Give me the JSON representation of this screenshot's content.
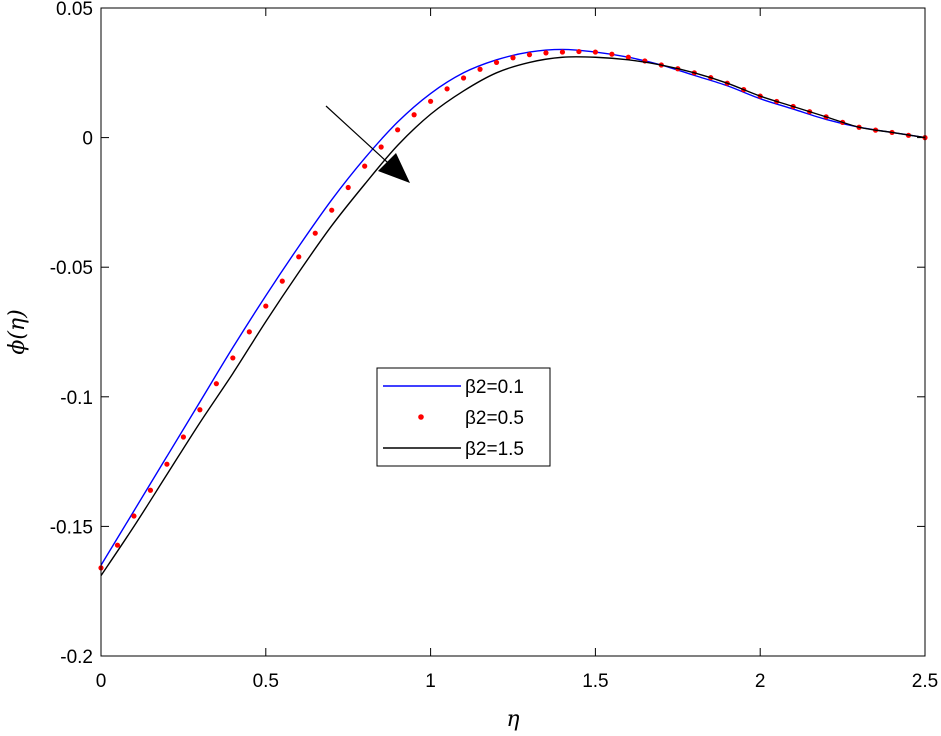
{
  "chart_data": {
    "type": "line",
    "xlabel": "η",
    "ylabel": "ϕ(η)",
    "xlim": [
      0,
      2.5
    ],
    "ylim": [
      -0.2,
      0.05
    ],
    "xticks": [
      0,
      0.5,
      1,
      1.5,
      2,
      2.5
    ],
    "xtick_labels": [
      "0",
      "0.5",
      "1",
      "1.5",
      "2",
      "2.5"
    ],
    "yticks": [
      -0.2,
      -0.15,
      -0.1,
      -0.05,
      0,
      0.05
    ],
    "ytick_labels": [
      "-0.2",
      "-0.15",
      "-0.1",
      "-0.05",
      "0",
      "0.05"
    ],
    "grid": false,
    "legend_position": "center",
    "annotation": "arrow indicating decreasing trend with increasing β2",
    "series": [
      {
        "name": "β2=0.1",
        "style": "line",
        "color": "#0000ff",
        "x": [
          0,
          0.1,
          0.2,
          0.3,
          0.4,
          0.5,
          0.6,
          0.7,
          0.8,
          0.9,
          1.0,
          1.1,
          1.2,
          1.3,
          1.4,
          1.5,
          1.6,
          1.7,
          1.8,
          1.9,
          2.0,
          2.1,
          2.2,
          2.3,
          2.4,
          2.5
        ],
        "y": [
          -0.165,
          -0.144,
          -0.123,
          -0.102,
          -0.081,
          -0.061,
          -0.042,
          -0.024,
          -0.008,
          0.006,
          0.017,
          0.025,
          0.03,
          0.033,
          0.034,
          0.033,
          0.031,
          0.028,
          0.024,
          0.02,
          0.015,
          0.011,
          0.007,
          0.004,
          0.002,
          0.0
        ]
      },
      {
        "name": "β2=0.5",
        "style": "dots",
        "color": "#ff0000",
        "x": [
          0,
          0.1,
          0.2,
          0.3,
          0.4,
          0.5,
          0.6,
          0.7,
          0.8,
          0.9,
          1.0,
          1.1,
          1.2,
          1.3,
          1.4,
          1.5,
          1.6,
          1.7,
          1.8,
          1.9,
          2.0,
          2.1,
          2.2,
          2.3,
          2.4,
          2.5
        ],
        "y": [
          -0.166,
          -0.146,
          -0.126,
          -0.105,
          -0.085,
          -0.065,
          -0.046,
          -0.028,
          -0.011,
          0.003,
          0.014,
          0.023,
          0.029,
          0.032,
          0.033,
          0.033,
          0.031,
          0.028,
          0.025,
          0.021,
          0.016,
          0.012,
          0.008,
          0.004,
          0.002,
          0.0
        ]
      },
      {
        "name": "β2=1.5",
        "style": "line",
        "color": "#000000",
        "x": [
          0,
          0.1,
          0.2,
          0.3,
          0.4,
          0.5,
          0.6,
          0.7,
          0.8,
          0.9,
          1.0,
          1.1,
          1.2,
          1.3,
          1.4,
          1.5,
          1.6,
          1.7,
          1.8,
          1.9,
          2.0,
          2.1,
          2.2,
          2.3,
          2.4,
          2.5
        ],
        "y": [
          -0.169,
          -0.15,
          -0.13,
          -0.11,
          -0.091,
          -0.071,
          -0.052,
          -0.034,
          -0.018,
          -0.003,
          0.009,
          0.018,
          0.025,
          0.029,
          0.031,
          0.031,
          0.03,
          0.028,
          0.025,
          0.021,
          0.016,
          0.012,
          0.008,
          0.004,
          0.002,
          0.0
        ]
      }
    ]
  }
}
